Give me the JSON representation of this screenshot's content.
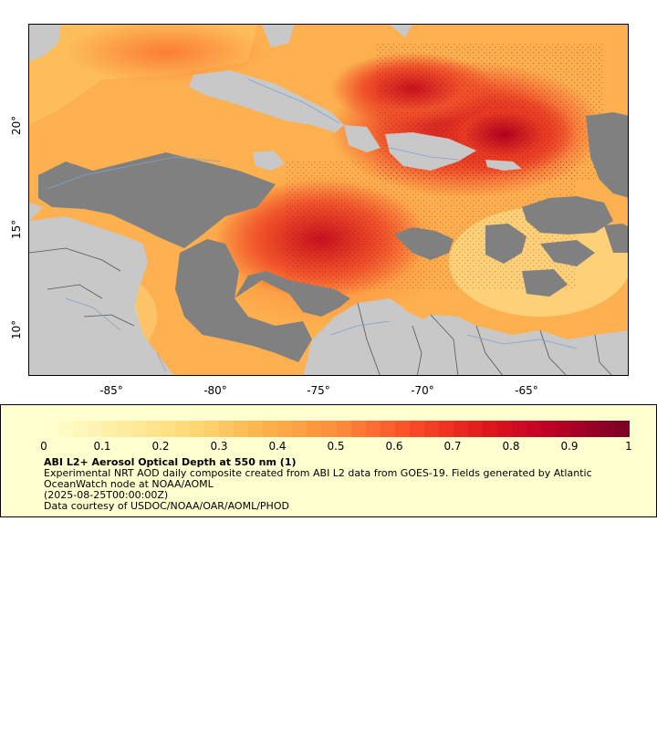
{
  "map": {
    "lat_axis": [
      {
        "value": 20,
        "label": "20°"
      },
      {
        "value": 15,
        "label": "15°"
      },
      {
        "value": 10,
        "label": "10°"
      }
    ],
    "lon_axis": [
      {
        "value": -85,
        "label": "-85°"
      },
      {
        "value": -80,
        "label": "-80°"
      },
      {
        "value": -75,
        "label": "-75°"
      },
      {
        "value": -70,
        "label": "-70°"
      },
      {
        "value": -65,
        "label": "-65°"
      }
    ],
    "extent": {
      "lon_min": -89,
      "lon_max": -60,
      "lat_min": 8,
      "lat_max": 25
    },
    "colors": {
      "land": "#c8c8c8",
      "no_data": "#808080",
      "border": "#666666",
      "river": "#7ea3c9"
    }
  },
  "legend": {
    "colorbar_colors": [
      "#ffffcc",
      "#ffeda0",
      "#fed976",
      "#feb24c",
      "#fd8d3c",
      "#fc4e2a",
      "#e31a1c",
      "#bd0026",
      "#800026"
    ],
    "ticks": [
      "0",
      "0.1",
      "0.2",
      "0.3",
      "0.4",
      "0.5",
      "0.6",
      "0.7",
      "0.8",
      "0.9",
      "1"
    ],
    "title": "ABI L2+ Aerosol Optical Depth at 550 nm (1)",
    "description": "Experimental NRT AOD daily composite created from ABI L2 data from GOES-19. Fields generated by Atlantic OceanWatch node at NOAA/AOML",
    "timestamp": "(2025-08-25T00:00:00Z)",
    "credit": "Data courtesy of USDOC/NOAA/OAR/AOML/PHOD"
  }
}
